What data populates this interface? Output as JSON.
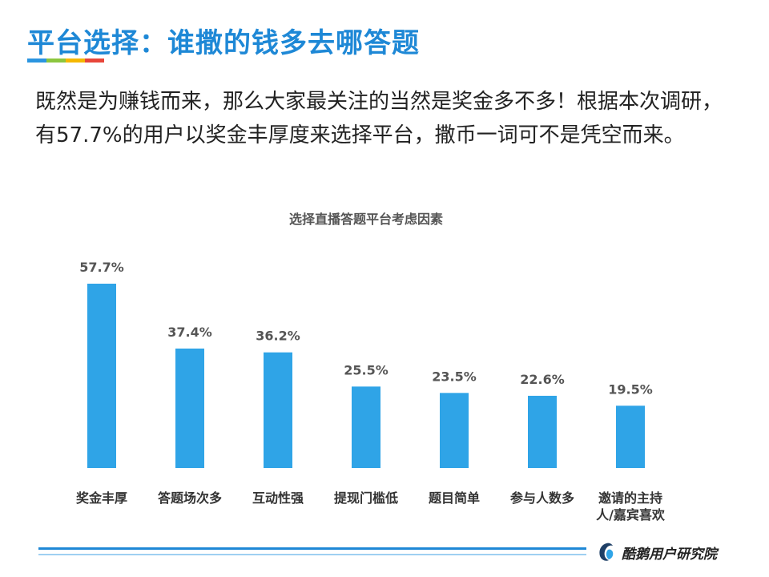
{
  "slide": {
    "title": "平台选择：谁撒的钱多去哪答题",
    "body": "既然是为赚钱而来，那么大家最关注的当然是奖金多不多！根据本次调研，有57.7%的用户以奖金丰厚度来选择平台，撒币一词可不是凭空而来。"
  },
  "colors": {
    "title": "#1e88d6",
    "bar": "#2fa4e7",
    "title_bar_segments": [
      "#2b95e0",
      "#8cc63f",
      "#f5b800",
      "#e8463a"
    ]
  },
  "chart_data": {
    "type": "bar",
    "title": "选择直播答题平台考虑因素",
    "categories": [
      "奖金丰厚",
      "答题场次多",
      "互动性强",
      "提现门槛低",
      "题目简单",
      "参与人数多",
      "邀请的主持\n人/嘉宾喜欢"
    ],
    "values": [
      57.7,
      37.4,
      36.2,
      25.5,
      23.5,
      22.6,
      19.5
    ],
    "value_labels": [
      "57.7%",
      "37.4%",
      "36.2%",
      "25.5%",
      "23.5%",
      "22.6%",
      "19.5%"
    ],
    "ylim": [
      0,
      60
    ],
    "xlabel": "",
    "ylabel": "",
    "grid": false,
    "legend": "none"
  },
  "footer": {
    "brand": "酷鹅用户研究院",
    "logo_icon": "penguin-logo-icon"
  }
}
